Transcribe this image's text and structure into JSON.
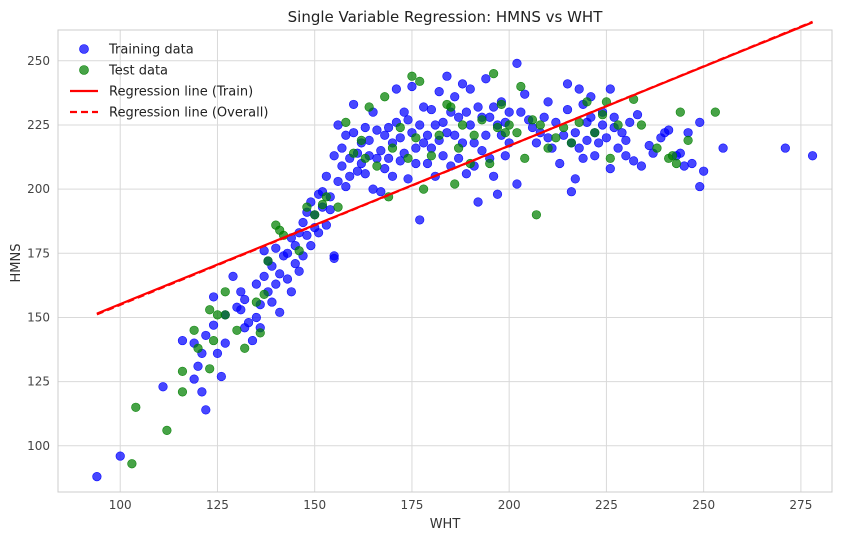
{
  "chart_data": {
    "type": "scatter",
    "title": "Single Variable Regression: HMNS vs WHT",
    "xlabel": "WHT",
    "ylabel": "HMNS",
    "xlim": [
      84,
      283
    ],
    "ylim": [
      82,
      262
    ],
    "xticks": [
      100,
      125,
      150,
      175,
      200,
      225,
      250,
      275
    ],
    "yticks": [
      100,
      125,
      150,
      175,
      200,
      225,
      250
    ],
    "grid": true,
    "legend_position": "top-left",
    "colors": {
      "train": "#0000ff",
      "test": "#008000",
      "line_train": "#ff0000",
      "line_overall": "#ff0000"
    },
    "legend": [
      {
        "label": "Training data",
        "kind": "marker",
        "color": "#0000ff"
      },
      {
        "label": "Test data",
        "kind": "marker",
        "color": "#008000"
      },
      {
        "label": "Regression line (Train)",
        "kind": "solid",
        "color": "#ff0000"
      },
      {
        "label": "Regression line (Overall)",
        "kind": "dashed",
        "color": "#ff0000"
      }
    ],
    "series": [
      {
        "name": "Training data",
        "points": [
          [
            94,
            88
          ],
          [
            100,
            96
          ],
          [
            111,
            123
          ],
          [
            116,
            141
          ],
          [
            119,
            126
          ],
          [
            119,
            140
          ],
          [
            120,
            131
          ],
          [
            121,
            121
          ],
          [
            121,
            136
          ],
          [
            122,
            114
          ],
          [
            122,
            143
          ],
          [
            124,
            158
          ],
          [
            124,
            147
          ],
          [
            125,
            136
          ],
          [
            126,
            127
          ],
          [
            127,
            140
          ],
          [
            127,
            151
          ],
          [
            129,
            166
          ],
          [
            130,
            154
          ],
          [
            131,
            160
          ],
          [
            131,
            153
          ],
          [
            132,
            157
          ],
          [
            132,
            146
          ],
          [
            133,
            148
          ],
          [
            134,
            141
          ],
          [
            135,
            150
          ],
          [
            135,
            163
          ],
          [
            136,
            155
          ],
          [
            136,
            146
          ],
          [
            137,
            176
          ],
          [
            137,
            166
          ],
          [
            138,
            172
          ],
          [
            138,
            160
          ],
          [
            139,
            156
          ],
          [
            139,
            170
          ],
          [
            140,
            163
          ],
          [
            140,
            177
          ],
          [
            141,
            167
          ],
          [
            141,
            152
          ],
          [
            142,
            174
          ],
          [
            143,
            165
          ],
          [
            143,
            175
          ],
          [
            144,
            181
          ],
          [
            144,
            160
          ],
          [
            145,
            171
          ],
          [
            145,
            178
          ],
          [
            146,
            183
          ],
          [
            146,
            168
          ],
          [
            147,
            187
          ],
          [
            147,
            174
          ],
          [
            148,
            191
          ],
          [
            148,
            182
          ],
          [
            149,
            178
          ],
          [
            149,
            195
          ],
          [
            150,
            185
          ],
          [
            150,
            190
          ],
          [
            151,
            198
          ],
          [
            151,
            183
          ],
          [
            152,
            193
          ],
          [
            152,
            199
          ],
          [
            153,
            186
          ],
          [
            153,
            205
          ],
          [
            154,
            197
          ],
          [
            154,
            192
          ],
          [
            155,
            174
          ],
          [
            155,
            173
          ],
          [
            155,
            213
          ],
          [
            156,
            225
          ],
          [
            156,
            203
          ],
          [
            157,
            216
          ],
          [
            157,
            209
          ],
          [
            158,
            221
          ],
          [
            158,
            201
          ],
          [
            159,
            212
          ],
          [
            159,
            205
          ],
          [
            160,
            222
          ],
          [
            160,
            233
          ],
          [
            161,
            207
          ],
          [
            161,
            214
          ],
          [
            162,
            218
          ],
          [
            162,
            210
          ],
          [
            163,
            224
          ],
          [
            163,
            206
          ],
          [
            164,
            213
          ],
          [
            164,
            219
          ],
          [
            165,
            200
          ],
          [
            165,
            230
          ],
          [
            166,
            223
          ],
          [
            166,
            212
          ],
          [
            167,
            215
          ],
          [
            167,
            199
          ],
          [
            168,
            208
          ],
          [
            168,
            221
          ],
          [
            169,
            224
          ],
          [
            169,
            212
          ],
          [
            170,
            205
          ],
          [
            170,
            218
          ],
          [
            171,
            239
          ],
          [
            171,
            226
          ],
          [
            172,
            211
          ],
          [
            172,
            220
          ],
          [
            173,
            214
          ],
          [
            173,
            230
          ],
          [
            174,
            227
          ],
          [
            174,
            204
          ],
          [
            175,
            240
          ],
          [
            175,
            222
          ],
          [
            176,
            216
          ],
          [
            176,
            210
          ],
          [
            177,
            225
          ],
          [
            177,
            188
          ],
          [
            178,
            232
          ],
          [
            178,
            218
          ],
          [
            179,
            221
          ],
          [
            179,
            210
          ],
          [
            180,
            231
          ],
          [
            180,
            216
          ],
          [
            181,
            225
          ],
          [
            181,
            205
          ],
          [
            182,
            238
          ],
          [
            182,
            219
          ],
          [
            183,
            226
          ],
          [
            183,
            213
          ],
          [
            184,
            244
          ],
          [
            184,
            222
          ],
          [
            185,
            230
          ],
          [
            185,
            209
          ],
          [
            186,
            236
          ],
          [
            186,
            221
          ],
          [
            187,
            228
          ],
          [
            187,
            212
          ],
          [
            188,
            241
          ],
          [
            188,
            218
          ],
          [
            189,
            230
          ],
          [
            189,
            206
          ],
          [
            190,
            239
          ],
          [
            190,
            225
          ],
          [
            191,
            218
          ],
          [
            191,
            209
          ],
          [
            192,
            232
          ],
          [
            192,
            195
          ],
          [
            193,
            228
          ],
          [
            193,
            215
          ],
          [
            194,
            243
          ],
          [
            194,
            221
          ],
          [
            195,
            228
          ],
          [
            195,
            212
          ],
          [
            196,
            232
          ],
          [
            196,
            205
          ],
          [
            197,
            225
          ],
          [
            197,
            198
          ],
          [
            198,
            234
          ],
          [
            198,
            221
          ],
          [
            199,
            226
          ],
          [
            199,
            213
          ],
          [
            200,
            230
          ],
          [
            200,
            218
          ],
          [
            202,
            202
          ],
          [
            202,
            249
          ],
          [
            203,
            230
          ],
          [
            204,
            237
          ],
          [
            205,
            227
          ],
          [
            206,
            224
          ],
          [
            207,
            218
          ],
          [
            208,
            222
          ],
          [
            209,
            228
          ],
          [
            210,
            234
          ],
          [
            210,
            220
          ],
          [
            211,
            216
          ],
          [
            212,
            226
          ],
          [
            213,
            210
          ],
          [
            214,
            221
          ],
          [
            215,
            231
          ],
          [
            215,
            241
          ],
          [
            216,
            218
          ],
          [
            216,
            199
          ],
          [
            217,
            222
          ],
          [
            217,
            204
          ],
          [
            218,
            239
          ],
          [
            218,
            216
          ],
          [
            219,
            233
          ],
          [
            219,
            212
          ],
          [
            220,
            226
          ],
          [
            220,
            219
          ],
          [
            221,
            236
          ],
          [
            221,
            228
          ],
          [
            222,
            213
          ],
          [
            222,
            222
          ],
          [
            223,
            218
          ],
          [
            224,
            225
          ],
          [
            224,
            230
          ],
          [
            225,
            220
          ],
          [
            226,
            208
          ],
          [
            226,
            239
          ],
          [
            227,
            224
          ],
          [
            227,
            228
          ],
          [
            228,
            216
          ],
          [
            229,
            222
          ],
          [
            230,
            219
          ],
          [
            230,
            213
          ],
          [
            231,
            226
          ],
          [
            232,
            211
          ],
          [
            233,
            229
          ],
          [
            234,
            209
          ],
          [
            236,
            217
          ],
          [
            237,
            214
          ],
          [
            239,
            220
          ],
          [
            240,
            222
          ],
          [
            241,
            223
          ],
          [
            243,
            213
          ],
          [
            244,
            214
          ],
          [
            245,
            209
          ],
          [
            246,
            222
          ],
          [
            247,
            210
          ],
          [
            249,
            226
          ],
          [
            249,
            201
          ],
          [
            250,
            207
          ],
          [
            255,
            216
          ],
          [
            271,
            216
          ],
          [
            278,
            213
          ]
        ]
      },
      {
        "name": "Test data",
        "points": [
          [
            103,
            93
          ],
          [
            104,
            115
          ],
          [
            112,
            106
          ],
          [
            116,
            129
          ],
          [
            116,
            121
          ],
          [
            119,
            145
          ],
          [
            120,
            138
          ],
          [
            123,
            153
          ],
          [
            123,
            130
          ],
          [
            124,
            141
          ],
          [
            125,
            151
          ],
          [
            127,
            151
          ],
          [
            127,
            160
          ],
          [
            130,
            145
          ],
          [
            132,
            138
          ],
          [
            135,
            156
          ],
          [
            136,
            144
          ],
          [
            137,
            159
          ],
          [
            138,
            172
          ],
          [
            140,
            186
          ],
          [
            141,
            184
          ],
          [
            142,
            182
          ],
          [
            146,
            176
          ],
          [
            148,
            193
          ],
          [
            150,
            190
          ],
          [
            152,
            194
          ],
          [
            153,
            197
          ],
          [
            156,
            193
          ],
          [
            158,
            226
          ],
          [
            160,
            214
          ],
          [
            162,
            219
          ],
          [
            163,
            212
          ],
          [
            164,
            232
          ],
          [
            166,
            209
          ],
          [
            168,
            236
          ],
          [
            169,
            197
          ],
          [
            170,
            216
          ],
          [
            172,
            224
          ],
          [
            174,
            212
          ],
          [
            175,
            244
          ],
          [
            176,
            220
          ],
          [
            177,
            242
          ],
          [
            178,
            200
          ],
          [
            180,
            213
          ],
          [
            182,
            221
          ],
          [
            184,
            233
          ],
          [
            185,
            232
          ],
          [
            186,
            202
          ],
          [
            187,
            216
          ],
          [
            188,
            225
          ],
          [
            190,
            210
          ],
          [
            191,
            221
          ],
          [
            193,
            227
          ],
          [
            195,
            210
          ],
          [
            196,
            245
          ],
          [
            197,
            224
          ],
          [
            198,
            233
          ],
          [
            199,
            222
          ],
          [
            200,
            225
          ],
          [
            202,
            222
          ],
          [
            203,
            240
          ],
          [
            204,
            212
          ],
          [
            206,
            227
          ],
          [
            207,
            190
          ],
          [
            208,
            225
          ],
          [
            210,
            216
          ],
          [
            212,
            220
          ],
          [
            214,
            224
          ],
          [
            216,
            218
          ],
          [
            218,
            226
          ],
          [
            220,
            234
          ],
          [
            222,
            222
          ],
          [
            224,
            229
          ],
          [
            225,
            234
          ],
          [
            226,
            212
          ],
          [
            228,
            225
          ],
          [
            232,
            235
          ],
          [
            234,
            225
          ],
          [
            238,
            216
          ],
          [
            241,
            212
          ],
          [
            242,
            213
          ],
          [
            243,
            210
          ],
          [
            244,
            230
          ],
          [
            246,
            219
          ],
          [
            253,
            230
          ]
        ]
      },
      {
        "name": "Regression line (Train)",
        "style": "solid",
        "points": [
          [
            94,
            151.5
          ],
          [
            278,
            265
          ]
        ]
      },
      {
        "name": "Regression line (Overall)",
        "style": "dashed",
        "points": [
          [
            94,
            151.2
          ],
          [
            278,
            265.2
          ]
        ]
      }
    ]
  }
}
